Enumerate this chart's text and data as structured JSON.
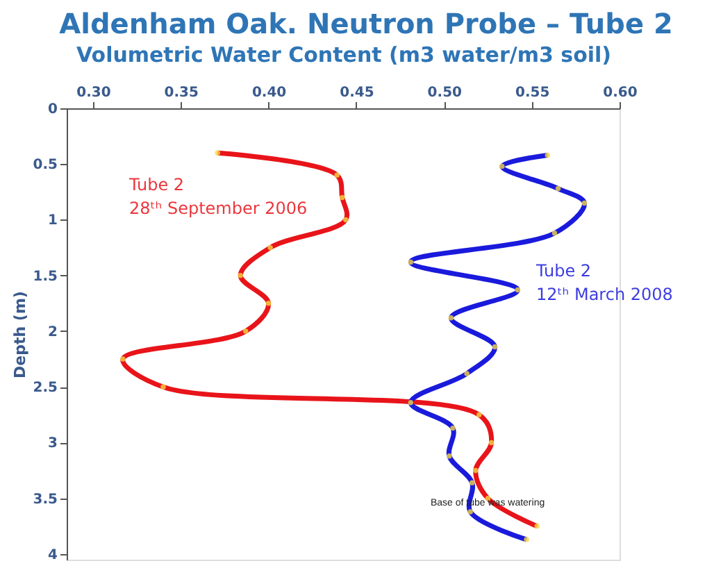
{
  "chart_data": {
    "type": "line",
    "title": "Aldenham Oak. Neutron Probe – Tube 2",
    "xlabel": "Volumetric Water Content (m3 water/m3 soil)",
    "ylabel": "Depth (m)",
    "xlim": [
      0.285,
      0.6
    ],
    "xticks": [
      {
        "value": 0.3,
        "label": "0.30"
      },
      0.35,
      {
        "value": 0.4,
        "label": "0.40"
      },
      0.45,
      {
        "value": 0.5,
        "label": "0.50"
      },
      0.55,
      {
        "value": 0.6,
        "label": "0.60"
      }
    ],
    "ylim": [
      4.05,
      0
    ],
    "yticks": [
      0,
      0.5,
      1,
      1.5,
      2,
      2.5,
      3,
      3.5,
      4
    ],
    "grid": false,
    "legend": false,
    "marker": "circle",
    "line_style": "solid",
    "annotations": [
      "Base of tube was watering"
    ],
    "series": [
      {
        "name": "Tube 2\n28ᵗʰ September 2006",
        "color": "#e8141a",
        "x": [
          0.371,
          0.439,
          0.442,
          0.444,
          0.401,
          0.384,
          0.4,
          0.387,
          0.317,
          0.34,
          0.52,
          0.527,
          0.518,
          0.525,
          0.553
        ],
        "values": [
          0.4,
          0.6,
          0.8,
          1.0,
          1.25,
          1.5,
          1.75,
          2.0,
          2.25,
          2.5,
          2.75,
          3.0,
          3.25,
          3.5,
          3.75
        ]
      },
      {
        "name": "Tube 2\n12ᵗʰ March 2008",
        "color": "#1a1adc",
        "x": [
          0.559,
          0.533,
          0.565,
          0.58,
          0.563,
          0.481,
          0.542,
          0.504,
          0.529,
          0.513,
          0.481,
          0.505,
          0.503,
          0.516,
          0.515,
          0.547
        ],
        "values": [
          0.42,
          0.52,
          0.72,
          0.85,
          1.12,
          1.38,
          1.63,
          1.88,
          2.14,
          2.38,
          2.64,
          2.87,
          3.12,
          3.36,
          3.62,
          3.87
        ]
      }
    ]
  }
}
